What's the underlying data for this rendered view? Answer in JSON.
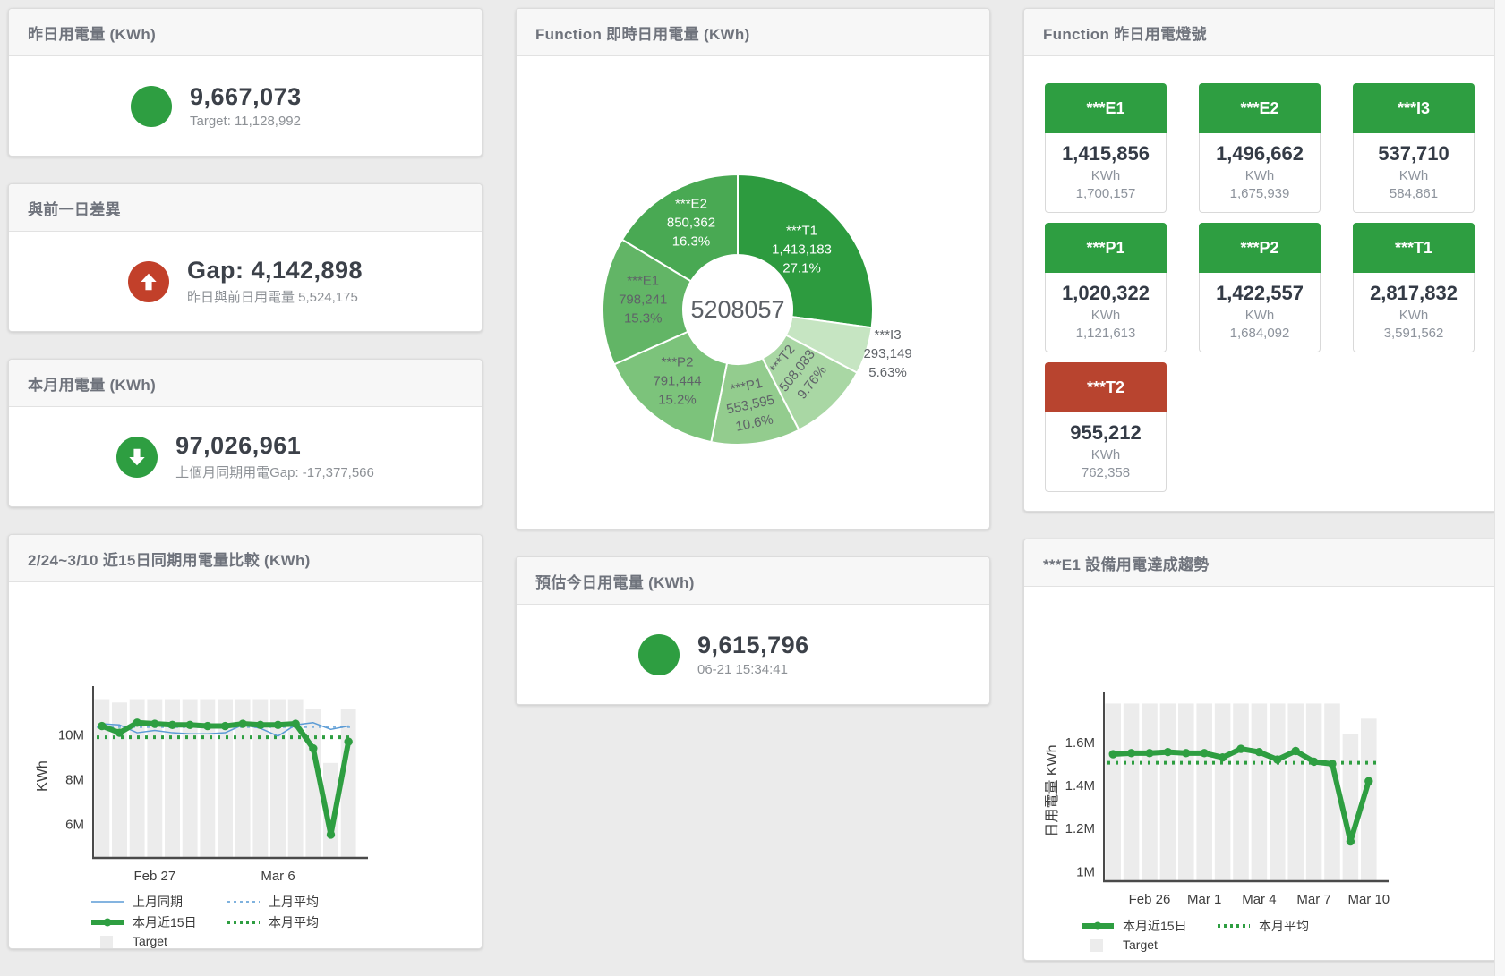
{
  "page": {
    "background": "#ebebeb"
  },
  "cards": {
    "yesterday": {
      "title": "昨日用電量 (KWh)",
      "value": "9,667,073",
      "subtext": "Target: 11,128,992",
      "status_color": "#2e9e41"
    },
    "day_gap": {
      "title": "與前一日差異",
      "value": "Gap: 4,142,898",
      "subtext": "昨日與前日用電量 5,524,175",
      "status_color": "#c2402a"
    },
    "month": {
      "title": "本月用電量 (KWh)",
      "value": "97,026,961",
      "subtext": "上個月同期用電Gap: -17,377,566",
      "status_color": "#2e9e41"
    },
    "donut_card": {
      "title": "Function 即時日用電量 (KWh)"
    },
    "forecast": {
      "title": "預估今日用電量 (KWh)",
      "value": "9,615,796",
      "subtext": "06-21 15:34:41",
      "status_color": "#2e9e41"
    },
    "lights": {
      "title": "Function 昨日用電燈號",
      "tiles": [
        {
          "label": "***E1",
          "value": "1,415,856",
          "unit": "KWh",
          "target": "1,700,157",
          "color": "#2e9e41"
        },
        {
          "label": "***E2",
          "value": "1,496,662",
          "unit": "KWh",
          "target": "1,675,939",
          "color": "#2e9e41"
        },
        {
          "label": "***I3",
          "value": "537,710",
          "unit": "KWh",
          "target": "584,861",
          "color": "#2e9e41"
        },
        {
          "label": "***P1",
          "value": "1,020,322",
          "unit": "KWh",
          "target": "1,121,613",
          "color": "#2e9e41"
        },
        {
          "label": "***P2",
          "value": "1,422,557",
          "unit": "KWh",
          "target": "1,684,092",
          "color": "#2e9e41"
        },
        {
          "label": "***T1",
          "value": "2,817,832",
          "unit": "KWh",
          "target": "3,591,562",
          "color": "#2e9e41"
        },
        {
          "label": "***T2",
          "value": "955,212",
          "unit": "KWh",
          "target": "762,358",
          "color": "#b8442f"
        }
      ]
    },
    "compare": {
      "title": "2/24~3/10 近15日同期用電量比較 (KWh)"
    },
    "trend": {
      "title": "***E1 設備用電達成趨勢"
    }
  },
  "chart_data": [
    {
      "id": "function-realtime-donut",
      "type": "pie",
      "title": "Function 即時日用電量 (KWh)",
      "center_total": "5208057",
      "segments": [
        {
          "label": "***T1",
          "value": 1413183,
          "display": "1,413,183",
          "pct": "27.1%",
          "color": "#2d9b3f",
          "text": "#ffffff",
          "label_r": 95,
          "rotate": 0
        },
        {
          "label": "***I3",
          "value": 293149,
          "display": "293,149",
          "pct": "5.63%",
          "color": "#c6e5c2",
          "text": "#5f6368",
          "label_r": 176,
          "rotate": 0,
          "outside": true
        },
        {
          "label": "***T2",
          "value": 508083,
          "display": "508,083",
          "pct": "9.76%",
          "color": "#a9d7a4",
          "text": "#5f6368",
          "label_r": 100,
          "rotate": -52
        },
        {
          "label": "***P1",
          "value": 553595,
          "display": "553,595",
          "pct": "10.6%",
          "color": "#93cc8e",
          "text": "#5f6368",
          "label_r": 112,
          "rotate": -12
        },
        {
          "label": "***P2",
          "value": 791444,
          "display": "791,444",
          "pct": "15.2%",
          "color": "#7cc37b",
          "text": "#5f6368",
          "label_r": 108,
          "rotate": 0
        },
        {
          "label": "***E1",
          "value": 798241,
          "display": "798,241",
          "pct": "15.3%",
          "color": "#62b566",
          "text": "#5f6368",
          "label_r": 106,
          "rotate": 0
        },
        {
          "label": "***E2",
          "value": 850362,
          "display": "850,362",
          "pct": "16.3%",
          "color": "#49a953",
          "text": "#ffffff",
          "label_r": 106,
          "rotate": 0
        }
      ]
    },
    {
      "id": "compare-15day",
      "type": "line+bar",
      "title": "2/24~3/10 近15日同期用電量比較 (KWh)",
      "ylabel": "KWh",
      "unit": "M KWh",
      "ylim": [
        4.55,
        11.78
      ],
      "yticks": [
        {
          "v": 6,
          "label": "6M"
        },
        {
          "v": 8,
          "label": "8M"
        },
        {
          "v": 10,
          "label": "10M"
        }
      ],
      "n": 15,
      "xticks": [
        {
          "i": 3,
          "label": "Feb 27"
        },
        {
          "i": 10,
          "label": "Mar 6"
        }
      ],
      "bars": {
        "name": "Target",
        "color": "#ececec",
        "values": [
          11.6,
          11.45,
          11.6,
          11.6,
          11.6,
          11.6,
          11.6,
          11.6,
          11.6,
          11.6,
          11.6,
          11.6,
          11.15,
          8.75,
          11.15
        ]
      },
      "lines": [
        {
          "name": "上月同期",
          "color": "#5b9bd5",
          "width": 1.5,
          "dots": false,
          "values": [
            10.5,
            10.45,
            10.1,
            10.2,
            10.1,
            10.05,
            10.05,
            10.1,
            10.45,
            10.3,
            9.95,
            10.45,
            10.55,
            10.25,
            10.4
          ]
        },
        {
          "name": "本月近15日",
          "color": "#2e9e41",
          "width": 6,
          "dots": true,
          "values": [
            10.4,
            10.1,
            10.55,
            10.5,
            10.45,
            10.45,
            10.4,
            10.4,
            10.5,
            10.45,
            10.45,
            10.5,
            9.4,
            5.55,
            9.7
          ]
        }
      ],
      "avg_lines": [
        {
          "name": "上月平均",
          "color": "#7fb2de",
          "width": 2,
          "dash": [
            3,
            5
          ],
          "value": 10.35
        },
        {
          "name": "本月平均",
          "color": "#2e9e41",
          "width": 4,
          "dash": [
            3,
            6
          ],
          "value": 9.9
        }
      ],
      "legend_rows": [
        [
          "上月同期",
          "上月平均"
        ],
        [
          "本月近15日",
          "本月平均"
        ],
        [
          "Target"
        ]
      ]
    },
    {
      "id": "e1-trend",
      "type": "line+bar",
      "title": "***E1 設備用電達成趨勢",
      "ylabel": "日用電量 KWh",
      "unit": "M KWh",
      "ylim": [
        0.96,
        1.79
      ],
      "yticks": [
        {
          "v": 1,
          "label": "1M"
        },
        {
          "v": 1.2,
          "label": "1.2M"
        },
        {
          "v": 1.4,
          "label": "1.4M"
        },
        {
          "v": 1.6,
          "label": "1.6M"
        }
      ],
      "n": 15,
      "xticks": [
        {
          "i": 2,
          "label": "Feb 26"
        },
        {
          "i": 5,
          "label": "Mar 1"
        },
        {
          "i": 8,
          "label": "Mar 4"
        },
        {
          "i": 11,
          "label": "Mar 7"
        },
        {
          "i": 14,
          "label": "Mar 10"
        }
      ],
      "bars": {
        "name": "Target",
        "color": "#ececec",
        "values": [
          1.78,
          1.78,
          1.78,
          1.78,
          1.78,
          1.78,
          1.78,
          1.78,
          1.78,
          1.78,
          1.78,
          1.78,
          1.78,
          1.64,
          1.71
        ]
      },
      "lines": [
        {
          "name": "本月近15日",
          "color": "#2e9e41",
          "width": 6,
          "dots": true,
          "values": [
            1.545,
            1.55,
            1.55,
            1.555,
            1.55,
            1.55,
            1.53,
            1.57,
            1.555,
            1.52,
            1.56,
            1.51,
            1.5,
            1.14,
            1.42
          ]
        }
      ],
      "avg_lines": [
        {
          "name": "本月平均",
          "color": "#2e9e41",
          "width": 4,
          "dash": [
            3,
            6
          ],
          "value": 1.505
        }
      ],
      "legend_rows": [
        [
          "本月近15日",
          "本月平均"
        ],
        [
          "Target"
        ]
      ]
    }
  ]
}
